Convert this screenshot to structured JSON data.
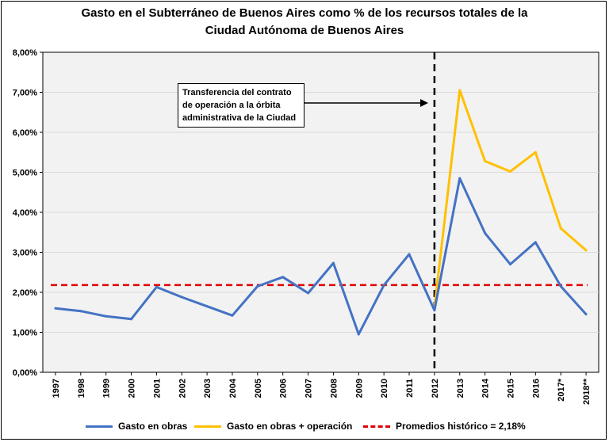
{
  "colors": {
    "obras": "#4472C4",
    "obras_operacion": "#FFC000",
    "promedio": "#E00000",
    "plot_bg": "#F2F2F2",
    "grid": "#D9D9D9"
  },
  "chart_data": {
    "type": "line",
    "title_line1": "Gasto en el Subterráneo de Buenos Aires como % de los recursos totales de la",
    "title_line2": "Ciudad Autónoma de Buenos Aires",
    "categories": [
      "1997",
      "1998",
      "1999",
      "2000",
      "2001",
      "2002",
      "2003",
      "2004",
      "2005",
      "2006",
      "2007",
      "2008",
      "2009",
      "2010",
      "2011",
      "2012",
      "2013",
      "2014",
      "2015",
      "2016",
      "2017*",
      "2018**"
    ],
    "y_ticks": [
      "0,00%",
      "1,00%",
      "2,00%",
      "3,00%",
      "4,00%",
      "5,00%",
      "6,00%",
      "7,00%",
      "8,00%"
    ],
    "ylim": [
      0,
      8
    ],
    "series": [
      {
        "name": "Gasto en obras",
        "color_key": "obras",
        "values": [
          1.6,
          1.53,
          1.4,
          1.33,
          2.13,
          1.88,
          1.65,
          1.42,
          2.15,
          2.38,
          1.98,
          2.73,
          0.95,
          2.18,
          2.95,
          1.55,
          4.85,
          3.48,
          2.7,
          3.25,
          2.15,
          1.45
        ]
      },
      {
        "name": "Gasto en obras + operación",
        "color_key": "obras_operacion",
        "values": [
          null,
          null,
          null,
          null,
          null,
          null,
          null,
          null,
          null,
          null,
          null,
          null,
          null,
          null,
          null,
          1.62,
          7.05,
          5.28,
          5.02,
          5.5,
          3.6,
          3.05
        ]
      }
    ],
    "reference_line": {
      "name": "Promedios histórico = 2,18%",
      "value": 2.18,
      "color_key": "promedio"
    },
    "vline_category": "2012",
    "annotation": "Transferencia del contrato de operación a la órbita administrativa de la Ciudad"
  },
  "legend": [
    {
      "label": "Gasto en obras",
      "color_key": "obras",
      "style": "solid"
    },
    {
      "label": "Gasto en obras + operación",
      "color_key": "obras_operacion",
      "style": "solid"
    },
    {
      "label": "Promedios histórico = 2,18%",
      "color_key": "promedio",
      "style": "dashed"
    }
  ]
}
